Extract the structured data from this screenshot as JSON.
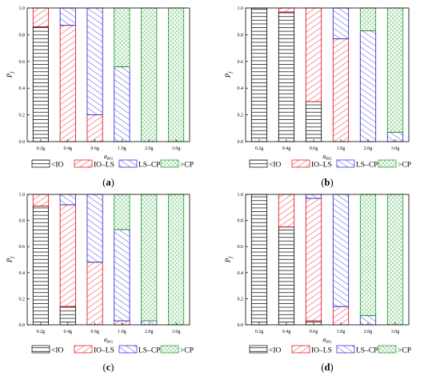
{
  "chart_data": [
    {
      "type": "bar",
      "stacked": true,
      "panel_label": "a",
      "ylabel": "P",
      "ylabel_sub": "f",
      "xlabel": "a",
      "xlabel_sub": "PG",
      "categories": [
        "0.2g",
        "0.4g",
        "0.6g",
        "1.0g",
        "2.0g",
        "3.0g"
      ],
      "ylim": [
        0.0,
        1.0
      ],
      "yticks": [
        "0.0",
        "0.2",
        "0.4",
        "0.6",
        "0.8",
        "1.0"
      ],
      "series": [
        {
          "name": "<IO",
          "values": [
            0.86,
            0.0,
            0.0,
            0.0,
            0.0,
            0.0
          ]
        },
        {
          "name": "IO–LS",
          "values": [
            0.14,
            0.87,
            0.2,
            0.0,
            0.0,
            0.0
          ]
        },
        {
          "name": "LS–CP",
          "values": [
            0.0,
            0.13,
            0.8,
            0.56,
            0.0,
            0.0
          ]
        },
        {
          "name": ">CP",
          "values": [
            0.0,
            0.0,
            0.0,
            0.44,
            1.0,
            1.0
          ]
        }
      ],
      "legend": "bottom"
    },
    {
      "type": "bar",
      "stacked": true,
      "panel_label": "b",
      "ylabel": "P",
      "ylabel_sub": "f",
      "xlabel": "a",
      "xlabel_sub": "PG",
      "categories": [
        "0.2g",
        "0.4g",
        "0.6g",
        "1.0g",
        "2.0g",
        "3.0g"
      ],
      "ylim": [
        0.0,
        1.0
      ],
      "yticks": [
        "0.0",
        "0.2",
        "0.4",
        "0.6",
        "0.8",
        "1.0"
      ],
      "series": [
        {
          "name": "<IO",
          "values": [
            1.0,
            0.97,
            0.3,
            0.0,
            0.0,
            0.0
          ]
        },
        {
          "name": "IO–LS",
          "values": [
            0.0,
            0.03,
            0.7,
            0.77,
            0.0,
            0.0
          ]
        },
        {
          "name": "LS–CP",
          "values": [
            0.0,
            0.0,
            0.0,
            0.23,
            0.83,
            0.07
          ]
        },
        {
          "name": ">CP",
          "values": [
            0.0,
            0.0,
            0.0,
            0.0,
            0.17,
            0.93
          ]
        }
      ],
      "legend": "bottom"
    },
    {
      "type": "bar",
      "stacked": true,
      "panel_label": "c",
      "ylabel": "P",
      "ylabel_sub": "f",
      "xlabel": "a",
      "xlabel_sub": "PG",
      "categories": [
        "0.2g",
        "0.4g",
        "0.6g",
        "1.0g",
        "2.0g",
        "3.0g"
      ],
      "ylim": [
        0.0,
        1.0
      ],
      "yticks": [
        "0.0",
        "0.2",
        "0.4",
        "0.6",
        "0.8",
        "1.0"
      ],
      "series": [
        {
          "name": "<IO",
          "values": [
            0.91,
            0.14,
            0.0,
            0.0,
            0.0,
            0.0
          ]
        },
        {
          "name": "IO–LS",
          "values": [
            0.09,
            0.78,
            0.48,
            0.03,
            0.0,
            0.0
          ]
        },
        {
          "name": "LS–CP",
          "values": [
            0.0,
            0.08,
            0.52,
            0.7,
            0.03,
            0.0
          ]
        },
        {
          "name": ">CP",
          "values": [
            0.0,
            0.0,
            0.0,
            0.27,
            0.97,
            1.0
          ]
        }
      ],
      "legend": "bottom"
    },
    {
      "type": "bar",
      "stacked": true,
      "panel_label": "d",
      "ylabel": "P",
      "ylabel_sub": "f",
      "xlabel": "a",
      "xlabel_sub": "PG",
      "categories": [
        "0.2g",
        "0.4g",
        "0.6g",
        "1.0g",
        "2.0g",
        "3.0g"
      ],
      "ylim": [
        0.0,
        1.0
      ],
      "yticks": [
        "0.0",
        "0.2",
        "0.4",
        "0.6",
        "0.8",
        "1.0"
      ],
      "series": [
        {
          "name": "<IO",
          "values": [
            1.0,
            0.75,
            0.03,
            0.0,
            0.0,
            0.0
          ]
        },
        {
          "name": "IO–LS",
          "values": [
            0.0,
            0.25,
            0.94,
            0.14,
            0.0,
            0.0
          ]
        },
        {
          "name": "LS–CP",
          "values": [
            0.0,
            0.0,
            0.03,
            0.86,
            0.07,
            0.0
          ]
        },
        {
          "name": ">CP",
          "values": [
            0.0,
            0.0,
            0.0,
            0.0,
            0.93,
            1.0
          ]
        }
      ],
      "legend": "bottom"
    }
  ],
  "colors": {
    "<IO": "#000000",
    "IO–LS": "#e3000f",
    "LS–CP": "#1c1cd6",
    ">CP": "#119a24"
  },
  "patterns": {
    "<IO": "horizontal-lines",
    "IO–LS": "diagonal-right",
    "LS–CP": "diagonal-left",
    ">CP": "crosshatch"
  }
}
